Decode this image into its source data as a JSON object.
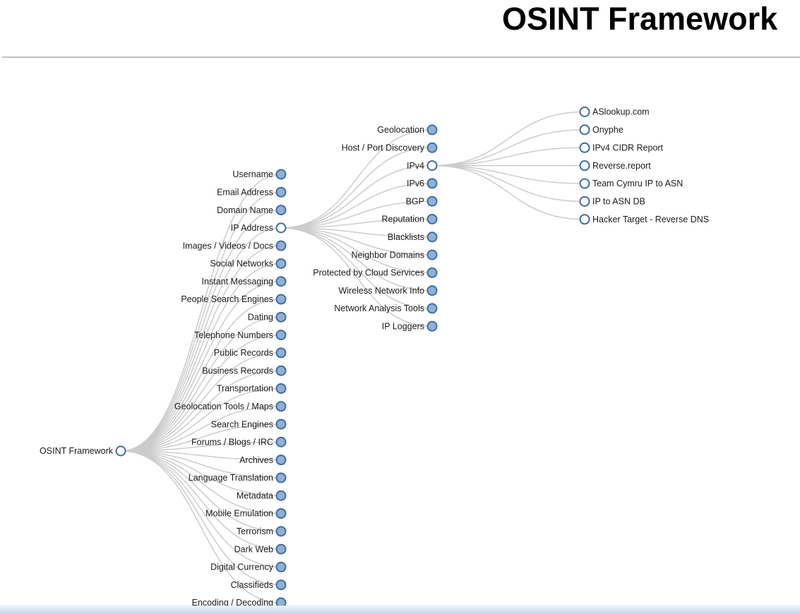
{
  "page": {
    "title": "OSINT Framework"
  },
  "colors": {
    "collapsed_node_fill": "#8fb1d6",
    "expanded_node_fill": "#ffffff",
    "node_stroke": "#3f6d9f",
    "link": "#cccccc",
    "label_text": "#1b1b1b",
    "scrollbar": "#bfd4e9"
  },
  "tree": {
    "label": "OSINT Framework",
    "state": "expanded",
    "children": [
      {
        "label": "Username",
        "state": "collapsed"
      },
      {
        "label": "Email Address",
        "state": "collapsed"
      },
      {
        "label": "Domain Name",
        "state": "collapsed"
      },
      {
        "label": "IP Address",
        "state": "expanded",
        "children": [
          {
            "label": "Geolocation",
            "state": "collapsed"
          },
          {
            "label": "Host / Port Discovery",
            "state": "collapsed"
          },
          {
            "label": "IPv4",
            "state": "expanded",
            "children": [
              {
                "label": "ASlookup.com",
                "state": "leaf"
              },
              {
                "label": "Onyphe",
                "state": "leaf"
              },
              {
                "label": "IPv4 CIDR Report",
                "state": "leaf"
              },
              {
                "label": "Reverse.report",
                "state": "leaf"
              },
              {
                "label": "Team Cymru IP to ASN",
                "state": "leaf"
              },
              {
                "label": "IP to ASN DB",
                "state": "leaf"
              },
              {
                "label": "Hacker Target - Reverse DNS",
                "state": "leaf"
              }
            ]
          },
          {
            "label": "IPv6",
            "state": "collapsed"
          },
          {
            "label": "BGP",
            "state": "collapsed"
          },
          {
            "label": "Reputation",
            "state": "collapsed"
          },
          {
            "label": "Blacklists",
            "state": "collapsed"
          },
          {
            "label": "Neighbor Domains",
            "state": "collapsed"
          },
          {
            "label": "Protected by Cloud Services",
            "state": "collapsed"
          },
          {
            "label": "Wireless Network Info",
            "state": "collapsed"
          },
          {
            "label": "Network Analysis Tools",
            "state": "collapsed"
          },
          {
            "label": "IP Loggers",
            "state": "collapsed"
          }
        ]
      },
      {
        "label": "Images / Videos / Docs",
        "state": "collapsed"
      },
      {
        "label": "Social Networks",
        "state": "collapsed"
      },
      {
        "label": "Instant Messaging",
        "state": "collapsed"
      },
      {
        "label": "People Search Engines",
        "state": "collapsed"
      },
      {
        "label": "Dating",
        "state": "collapsed"
      },
      {
        "label": "Telephone Numbers",
        "state": "collapsed"
      },
      {
        "label": "Public Records",
        "state": "collapsed"
      },
      {
        "label": "Business Records",
        "state": "collapsed"
      },
      {
        "label": "Transportation",
        "state": "collapsed"
      },
      {
        "label": "Geolocation Tools / Maps",
        "state": "collapsed"
      },
      {
        "label": "Search Engines",
        "state": "collapsed"
      },
      {
        "label": "Forums / Blogs / IRC",
        "state": "collapsed"
      },
      {
        "label": "Archives",
        "state": "collapsed"
      },
      {
        "label": "Language Translation",
        "state": "collapsed"
      },
      {
        "label": "Metadata",
        "state": "collapsed"
      },
      {
        "label": "Mobile Emulation",
        "state": "collapsed"
      },
      {
        "label": "Terrorism",
        "state": "collapsed"
      },
      {
        "label": "Dark Web",
        "state": "collapsed"
      },
      {
        "label": "Digital Currency",
        "state": "collapsed"
      },
      {
        "label": "Classifieds",
        "state": "collapsed"
      },
      {
        "label": "Encoding / Decoding",
        "state": "collapsed"
      }
    ]
  }
}
